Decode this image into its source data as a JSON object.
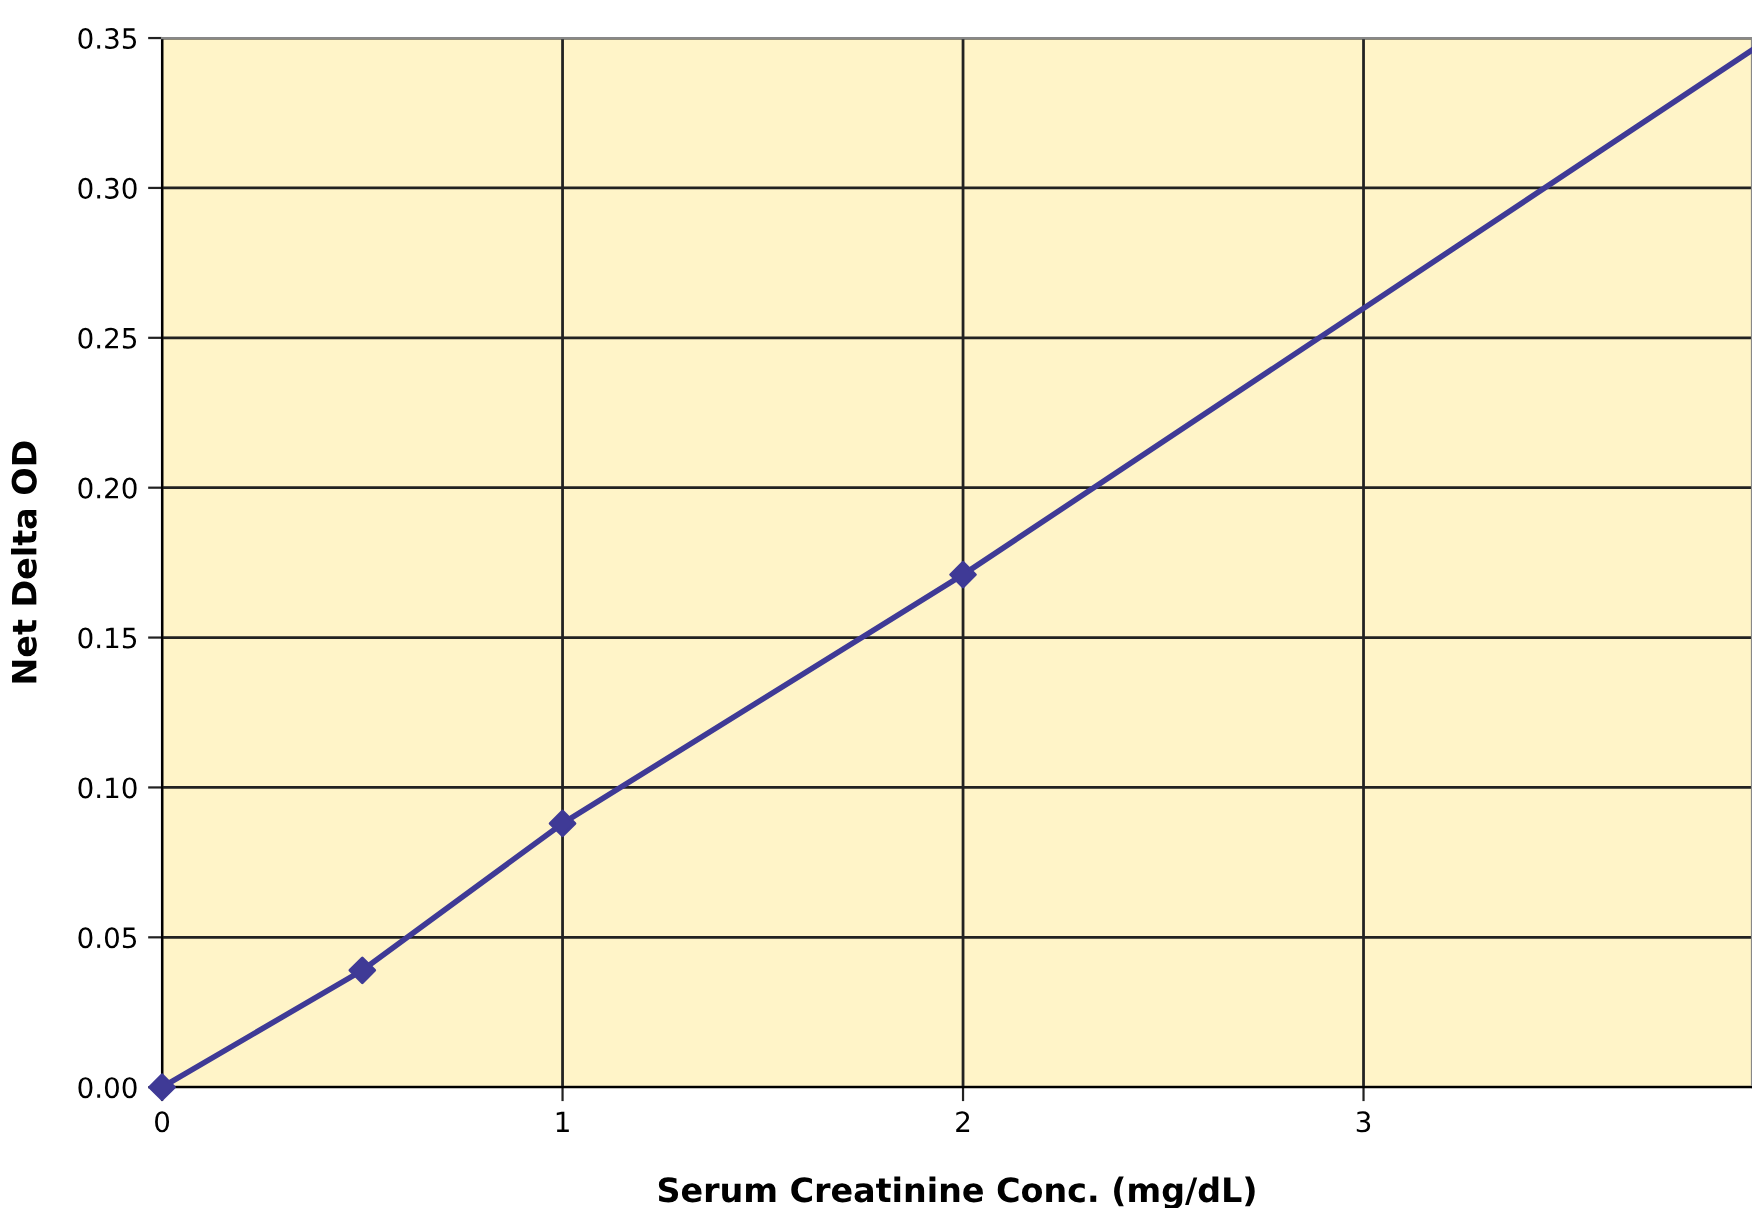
{
  "chart_data": {
    "type": "line",
    "xlabel": "Serum Creatinine Conc. (mg/dL)",
    "ylabel": "Net Delta OD",
    "xlim": [
      0,
      3.97
    ],
    "xticks": [
      0,
      1,
      2,
      3
    ],
    "ylim": [
      0,
      0.35
    ],
    "yticks": [
      {
        "value": 0,
        "label": "0.00"
      },
      {
        "value": 0.05,
        "label": "0.05"
      },
      {
        "value": 0.1,
        "label": "0.10"
      },
      {
        "value": 0.15,
        "label": "0.15"
      },
      {
        "value": 0.2,
        "label": "0.20"
      },
      {
        "value": 0.25,
        "label": "0.25"
      },
      {
        "value": 0.3,
        "label": "0.30"
      },
      {
        "value": 0.35,
        "label": "0.35"
      }
    ],
    "grid": true,
    "line_style": "solid",
    "series": [
      {
        "color": "#3f3a96",
        "marker": "none",
        "x": [
          0,
          0.5,
          1,
          2,
          3.97
        ],
        "values": [
          0,
          0.039,
          0.088,
          0.171,
          0.346
        ]
      },
      {
        "type": "scatter",
        "color": "#3f3a96",
        "marker": "diamond",
        "x": [
          0,
          0.5,
          1,
          2
        ],
        "values": [
          0,
          0.039,
          0.088,
          0.171
        ]
      }
    ]
  }
}
